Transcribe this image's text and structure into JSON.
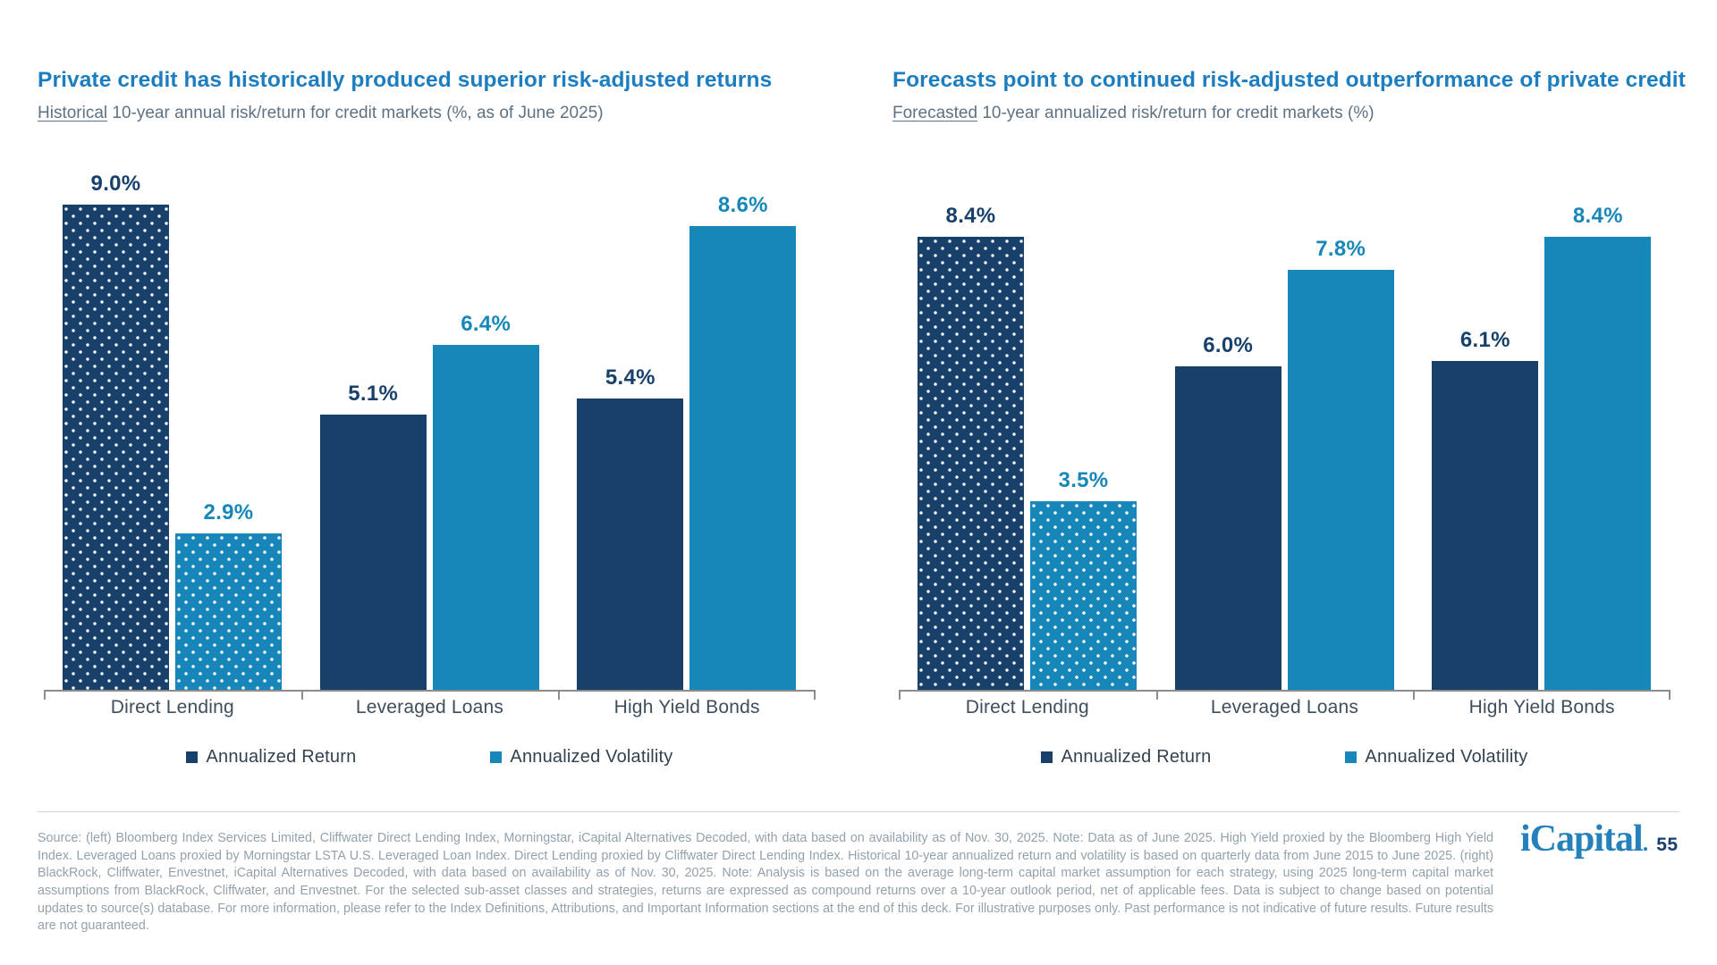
{
  "chart_data": [
    {
      "type": "bar",
      "title": "Private credit has historically produced superior risk-adjusted returns",
      "subtitle_lead": "Historical",
      "subtitle_rest": " 10-year annual risk/return for credit markets (%, as of June 2025)",
      "categories": [
        "Direct Lending",
        "Leveraged Loans",
        "High Yield Bonds"
      ],
      "series": [
        {
          "name": "Annualized Return",
          "values": [
            9.0,
            5.1,
            5.4
          ],
          "labels": [
            "9.0%",
            "5.1%",
            "5.4%"
          ],
          "color": "#17406B"
        },
        {
          "name": "Annualized Volatility",
          "values": [
            2.9,
            6.4,
            8.6
          ],
          "labels": [
            "2.9%",
            "6.4%",
            "8.6%"
          ],
          "color": "#1787BA"
        }
      ],
      "value_suffix": "%",
      "ylim": [
        0,
        10
      ],
      "grid": false,
      "legend_position": "bottom",
      "patterned_categories": [
        "Direct Lending"
      ]
    },
    {
      "type": "bar",
      "title": "Forecasts point to continued risk-adjusted outperformance of private credit",
      "subtitle_lead": "Forecasted",
      "subtitle_rest": " 10-year annualized risk/return for credit markets (%)",
      "categories": [
        "Direct Lending",
        "Leveraged Loans",
        "High Yield Bonds"
      ],
      "series": [
        {
          "name": "Annualized Return",
          "values": [
            8.4,
            6.0,
            6.1
          ],
          "labels": [
            "8.4%",
            "6.0%",
            "6.1%"
          ],
          "color": "#17406B"
        },
        {
          "name": "Annualized Volatility",
          "values": [
            3.5,
            7.8,
            8.4
          ],
          "labels": [
            "3.5%",
            "7.8%",
            "8.4%"
          ],
          "color": "#1787BA"
        }
      ],
      "value_suffix": "%",
      "ylim": [
        0,
        10
      ],
      "grid": false,
      "legend_position": "bottom",
      "patterned_categories": [
        "Direct Lending"
      ]
    }
  ],
  "footer": {
    "source_text": "Source: (left) Bloomberg Index Services Limited, Cliffwater Direct Lending Index, Morningstar, iCapital Alternatives Decoded, with data based on availability as of Nov. 30, 2025. Note: Data as of June 2025. High Yield proxied by the Bloomberg High Yield Index. Leveraged Loans proxied by Morningstar LSTA U.S. Leveraged Loan Index. Direct Lending proxied by Cliffwater Direct Lending Index. Historical 10-year annualized return and volatility is based on quarterly data from June 2015 to June 2025. (right) BlackRock, Cliffwater, Envestnet, iCapital Alternatives Decoded, with data based on availability as of Nov. 30, 2025. Note: Analysis is based on the average long-term capital market assumption for each strategy, using 2025 long-term capital market assumptions from BlackRock, Cliffwater, and Envestnet. For the selected sub-asset classes and strategies, returns are expressed as compound returns over a 10-year outlook period, net of applicable fees. Data is subject to change based on potential updates to source(s) database. For more information, please refer to the Index Definitions, Attributions, and Important Information sections at the end of this deck. For illustrative purposes only. Past performance is not indicative of future results. Future results are not guaranteed.",
    "logo_text": "iCapital",
    "logo_period": ".",
    "page_number": "55"
  },
  "colors": {
    "return_navy": "#17406B",
    "volatility_blue": "#1787BA",
    "title_blue": "#1C7EC0",
    "subtitle_gray": "#5E7283",
    "axis_gray": "#8C8C8C",
    "footer_gray": "#93A1AC"
  }
}
